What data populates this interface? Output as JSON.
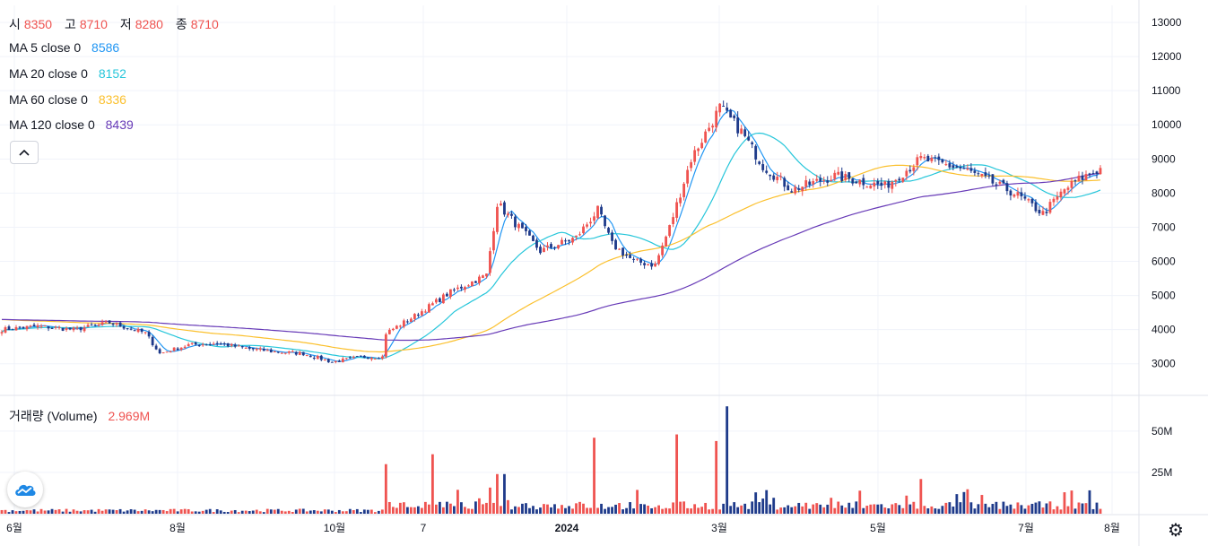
{
  "ohlc": {
    "open_label": "시",
    "open": "8350",
    "high_label": "고",
    "high": "8710",
    "low_label": "저",
    "low": "8280",
    "close_label": "종",
    "close": "8710"
  },
  "indicators": [
    {
      "label": "MA 5 close 0",
      "value": "8586",
      "color": "#2196f3"
    },
    {
      "label": "MA 20 close 0",
      "value": "8152",
      "color": "#26c6da"
    },
    {
      "label": "MA 60 close 0",
      "value": "8336",
      "color": "#fbc02d"
    },
    {
      "label": "MA 120 close 0",
      "value": "8439",
      "color": "#673ab7"
    }
  ],
  "volume": {
    "label": "거래량 (Volume)",
    "value": "2.969M"
  },
  "collapse_icon": "chevron-up-icon",
  "logo_icon": "cloud-logo-icon",
  "settings_icon": "gear-icon",
  "colors": {
    "up": "#ef5350",
    "down": "#1e3a8a"
  },
  "chart_data": {
    "type": "candlestick",
    "price_axis": {
      "ticks": [
        3000,
        4000,
        5000,
        6000,
        7000,
        8000,
        9000,
        10000,
        11000,
        12000,
        13000
      ],
      "range": [
        2100,
        13500
      ]
    },
    "volume_axis": {
      "ticks": [
        "25M",
        "50M"
      ],
      "tick_values": [
        25,
        50
      ],
      "range": [
        0,
        70
      ]
    },
    "x_axis": [
      {
        "label": "6월",
        "bold": false
      },
      {
        "label": "8월",
        "bold": false
      },
      {
        "label": "10월",
        "bold": false
      },
      {
        "label": "7",
        "bold": false
      },
      {
        "label": "2024",
        "bold": true
      },
      {
        "label": "3월",
        "bold": false
      },
      {
        "label": "5월",
        "bold": false
      },
      {
        "label": "7월",
        "bold": false
      },
      {
        "label": "8월",
        "bold": false
      }
    ],
    "close_keyframes": [
      [
        0,
        4000
      ],
      [
        10,
        4100
      ],
      [
        20,
        4000
      ],
      [
        30,
        4200
      ],
      [
        40,
        3900
      ],
      [
        44,
        3300
      ],
      [
        52,
        3550
      ],
      [
        60,
        3600
      ],
      [
        68,
        3450
      ],
      [
        76,
        3350
      ],
      [
        84,
        3300
      ],
      [
        92,
        3050
      ],
      [
        100,
        3200
      ],
      [
        106,
        3200
      ],
      [
        107,
        3900
      ],
      [
        115,
        4400
      ],
      [
        125,
        5100
      ],
      [
        135,
        5600
      ],
      [
        138,
        7700
      ],
      [
        150,
        6300
      ],
      [
        160,
        6700
      ],
      [
        166,
        7500
      ],
      [
        170,
        6500
      ],
      [
        176,
        6000
      ],
      [
        182,
        5900
      ],
      [
        186,
        7000
      ],
      [
        192,
        9000
      ],
      [
        200,
        10500
      ],
      [
        206,
        9800
      ],
      [
        212,
        8800
      ],
      [
        220,
        8100
      ],
      [
        232,
        8500
      ],
      [
        246,
        8200
      ],
      [
        256,
        9000
      ],
      [
        268,
        8700
      ],
      [
        282,
        8000
      ],
      [
        290,
        7400
      ],
      [
        296,
        8100
      ],
      [
        300,
        8400
      ],
      [
        306,
        8710
      ]
    ],
    "volume_spikes": [
      [
        107,
        30
      ],
      [
        120,
        36
      ],
      [
        138,
        24
      ],
      [
        140,
        24
      ],
      [
        165,
        46
      ],
      [
        188,
        48
      ],
      [
        199,
        44
      ],
      [
        202,
        65
      ],
      [
        256,
        21
      ],
      [
        296,
        13
      ]
    ],
    "volume_base_M": 2
  }
}
